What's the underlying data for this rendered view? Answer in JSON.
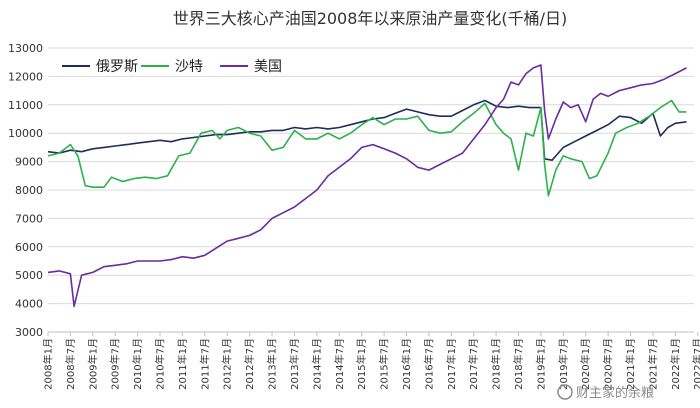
{
  "chart_data": {
    "type": "line",
    "title": "世界三大核心产油国2008年以来原油产量变化(千桶/日)",
    "ylim": [
      3000,
      13000
    ],
    "yticks": [
      3000,
      4000,
      5000,
      6000,
      7000,
      8000,
      9000,
      10000,
      11000,
      12000,
      13000
    ],
    "x_tick_labels": [
      "2008年1月",
      "2008年7月",
      "2009年1月",
      "2009年7月",
      "2010年1月",
      "2010年7月",
      "2011年1月",
      "2011年7月",
      "2012年1月",
      "2012年7月",
      "2013年1月",
      "2013年7月",
      "2014年1月",
      "2014年7月",
      "2015年1月",
      "2015年7月",
      "2016年1月",
      "2016年7月",
      "2017年1月",
      "2017年7月",
      "2018年1月",
      "2018年7月",
      "2019年1月",
      "2019年7月",
      "2020年1月",
      "2020年7月",
      "2021年1月",
      "2021年7月",
      "2022年1月",
      "2022年7月"
    ],
    "grid": "horizontal",
    "legend_position": "top-left",
    "series": [
      {
        "name": "俄罗斯",
        "color": "#1f2d5c",
        "points": [
          [
            0,
            9350
          ],
          [
            3,
            9300
          ],
          [
            6,
            9400
          ],
          [
            9,
            9350
          ],
          [
            12,
            9450
          ],
          [
            15,
            9500
          ],
          [
            18,
            9550
          ],
          [
            21,
            9600
          ],
          [
            24,
            9650
          ],
          [
            27,
            9700
          ],
          [
            30,
            9750
          ],
          [
            33,
            9700
          ],
          [
            36,
            9800
          ],
          [
            39,
            9850
          ],
          [
            42,
            9900
          ],
          [
            45,
            9950
          ],
          [
            48,
            9950
          ],
          [
            51,
            10000
          ],
          [
            54,
            10050
          ],
          [
            57,
            10050
          ],
          [
            60,
            10100
          ],
          [
            63,
            10100
          ],
          [
            66,
            10200
          ],
          [
            69,
            10150
          ],
          [
            72,
            10200
          ],
          [
            75,
            10150
          ],
          [
            78,
            10200
          ],
          [
            81,
            10300
          ],
          [
            84,
            10400
          ],
          [
            87,
            10500
          ],
          [
            90,
            10550
          ],
          [
            93,
            10700
          ],
          [
            96,
            10850
          ],
          [
            99,
            10750
          ],
          [
            102,
            10650
          ],
          [
            105,
            10600
          ],
          [
            108,
            10600
          ],
          [
            111,
            10800
          ],
          [
            114,
            11000
          ],
          [
            117,
            11150
          ],
          [
            120,
            10950
          ],
          [
            123,
            10900
          ],
          [
            126,
            10950
          ],
          [
            129,
            10900
          ],
          [
            132,
            10900
          ],
          [
            133,
            9100
          ],
          [
            135,
            9050
          ],
          [
            138,
            9500
          ],
          [
            141,
            9700
          ],
          [
            144,
            9900
          ],
          [
            147,
            10100
          ],
          [
            150,
            10300
          ],
          [
            153,
            10600
          ],
          [
            156,
            10550
          ],
          [
            159,
            10350
          ],
          [
            162,
            10700
          ],
          [
            164,
            9900
          ],
          [
            166,
            10200
          ],
          [
            168,
            10350
          ],
          [
            171,
            10400
          ]
        ]
      },
      {
        "name": "沙特",
        "color": "#2bb24c",
        "points": [
          [
            0,
            9200
          ],
          [
            3,
            9300
          ],
          [
            6,
            9600
          ],
          [
            8,
            9200
          ],
          [
            10,
            8150
          ],
          [
            12,
            8100
          ],
          [
            15,
            8100
          ],
          [
            17,
            8450
          ],
          [
            20,
            8300
          ],
          [
            23,
            8400
          ],
          [
            26,
            8450
          ],
          [
            29,
            8400
          ],
          [
            32,
            8500
          ],
          [
            35,
            9200
          ],
          [
            38,
            9300
          ],
          [
            41,
            10000
          ],
          [
            44,
            10100
          ],
          [
            46,
            9800
          ],
          [
            48,
            10100
          ],
          [
            51,
            10200
          ],
          [
            54,
            10000
          ],
          [
            57,
            9900
          ],
          [
            60,
            9400
          ],
          [
            63,
            9500
          ],
          [
            66,
            10100
          ],
          [
            69,
            9800
          ],
          [
            72,
            9800
          ],
          [
            75,
            10000
          ],
          [
            78,
            9800
          ],
          [
            81,
            10000
          ],
          [
            84,
            10300
          ],
          [
            87,
            10550
          ],
          [
            90,
            10300
          ],
          [
            93,
            10500
          ],
          [
            96,
            10500
          ],
          [
            99,
            10600
          ],
          [
            102,
            10100
          ],
          [
            105,
            10000
          ],
          [
            108,
            10050
          ],
          [
            111,
            10400
          ],
          [
            114,
            10700
          ],
          [
            117,
            11050
          ],
          [
            120,
            10300
          ],
          [
            122,
            10000
          ],
          [
            124,
            9800
          ],
          [
            126,
            8700
          ],
          [
            128,
            10000
          ],
          [
            130,
            9900
          ],
          [
            132,
            10900
          ],
          [
            133,
            8900
          ],
          [
            134,
            7800
          ],
          [
            136,
            8700
          ],
          [
            138,
            9200
          ],
          [
            140,
            9100
          ],
          [
            143,
            9000
          ],
          [
            145,
            8400
          ],
          [
            147,
            8500
          ],
          [
            150,
            9300
          ],
          [
            152,
            10000
          ],
          [
            155,
            10200
          ],
          [
            158,
            10350
          ],
          [
            161,
            10600
          ],
          [
            164,
            10900
          ],
          [
            167,
            11150
          ],
          [
            169,
            10750
          ],
          [
            171,
            10750
          ]
        ]
      },
      {
        "name": "美国",
        "color": "#6a2c9e",
        "points": [
          [
            0,
            5100
          ],
          [
            3,
            5150
          ],
          [
            6,
            5050
          ],
          [
            7,
            3900
          ],
          [
            9,
            5000
          ],
          [
            12,
            5100
          ],
          [
            15,
            5300
          ],
          [
            18,
            5350
          ],
          [
            21,
            5400
          ],
          [
            24,
            5500
          ],
          [
            27,
            5500
          ],
          [
            30,
            5500
          ],
          [
            33,
            5550
          ],
          [
            36,
            5650
          ],
          [
            39,
            5600
          ],
          [
            42,
            5700
          ],
          [
            45,
            5950
          ],
          [
            48,
            6200
          ],
          [
            51,
            6300
          ],
          [
            54,
            6400
          ],
          [
            57,
            6600
          ],
          [
            60,
            7000
          ],
          [
            63,
            7200
          ],
          [
            66,
            7400
          ],
          [
            69,
            7700
          ],
          [
            72,
            8000
          ],
          [
            75,
            8500
          ],
          [
            78,
            8800
          ],
          [
            81,
            9100
          ],
          [
            84,
            9500
          ],
          [
            87,
            9600
          ],
          [
            90,
            9450
          ],
          [
            93,
            9300
          ],
          [
            96,
            9100
          ],
          [
            99,
            8800
          ],
          [
            102,
            8700
          ],
          [
            105,
            8900
          ],
          [
            108,
            9100
          ],
          [
            111,
            9300
          ],
          [
            114,
            9800
          ],
          [
            117,
            10300
          ],
          [
            120,
            10900
          ],
          [
            122,
            11200
          ],
          [
            124,
            11800
          ],
          [
            126,
            11700
          ],
          [
            128,
            12100
          ],
          [
            130,
            12300
          ],
          [
            132,
            12400
          ],
          [
            133,
            10800
          ],
          [
            134,
            9800
          ],
          [
            136,
            10500
          ],
          [
            138,
            11100
          ],
          [
            140,
            10900
          ],
          [
            142,
            11000
          ],
          [
            144,
            10400
          ],
          [
            146,
            11200
          ],
          [
            148,
            11400
          ],
          [
            150,
            11300
          ],
          [
            153,
            11500
          ],
          [
            156,
            11600
          ],
          [
            159,
            11700
          ],
          [
            162,
            11750
          ],
          [
            165,
            11900
          ],
          [
            168,
            12100
          ],
          [
            171,
            12300
          ]
        ]
      }
    ]
  },
  "watermark": "财主家的余粮"
}
